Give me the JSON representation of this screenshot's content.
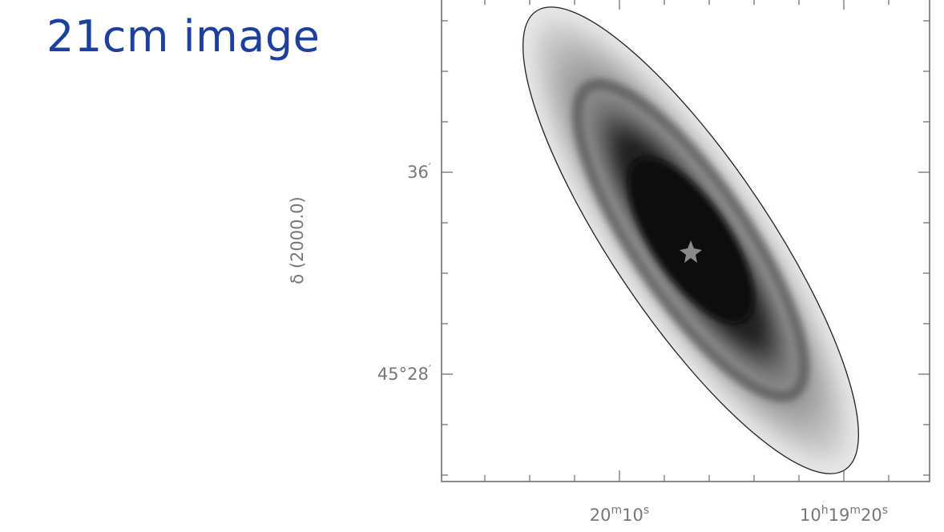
{
  "slide": {
    "title": "21cm image"
  },
  "figure": {
    "y_axis_label": "δ (2000.0)",
    "y_tick_labels": [
      [
        "36",
        "′"
      ],
      [
        "45°28",
        "′"
      ]
    ],
    "x_tick_labels": [
      [
        "20",
        "m",
        "10",
        "s"
      ],
      [
        "10",
        "h",
        "19",
        "m",
        "20",
        "s"
      ]
    ]
  }
}
